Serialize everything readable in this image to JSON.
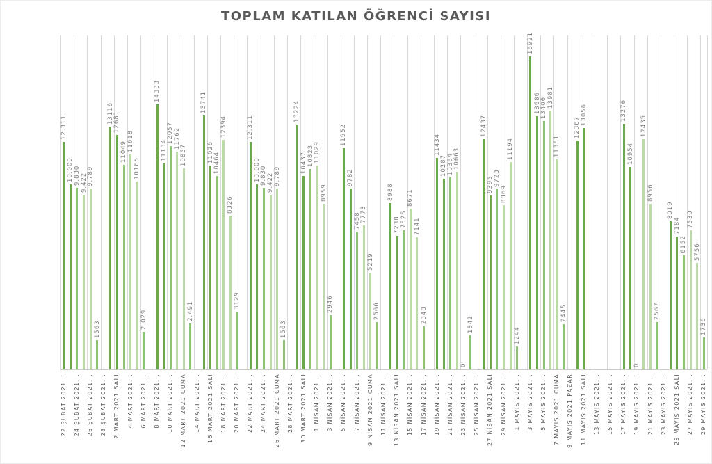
{
  "title": "TOPLAM KATILAN ÖĞRENCİ SAYISI",
  "colors": {
    "bar_dark": "#6aaa4d",
    "bar_medium": "#8cc473",
    "bar_light": "#bcdaa6",
    "gridline": "#d9d9d9",
    "axis_line": "#c9c9c9",
    "value_label": "#7f7f7f",
    "axis_label": "#595959",
    "title": "#595959"
  },
  "chart_data": {
    "type": "bar",
    "title": "TOPLAM KATILAN ÖĞRENCİ SAYISI",
    "xlabel": "",
    "ylabel": "",
    "ylim": [
      0,
      17000
    ],
    "grid": "vertical-only",
    "legend": false,
    "x_axis": {
      "num_categories": 97,
      "first_category": "22 ŞUBAT 2021",
      "last_category": "29 MAYIS 2021",
      "label_every": 2,
      "tick_labels": [
        "22 ŞUBAT 2021...",
        "24 ŞUBAT 2021...",
        "26 ŞUBAT 2021...",
        "28 ŞUBAT 2021...",
        "2 MART 2021 SALI",
        "4 MART 2021...",
        "6 MART 2021...",
        "8 MART 2021...",
        "10 MART 2021...",
        "12 MART 2021 CUMA",
        "14 MART 2021...",
        "16 MART 2021 SALI",
        "18 MART 2021...",
        "20 MART 2021...",
        "22 MART 2021...",
        "24 MART 2021...",
        "26 MART 2021 CUMA",
        "28 MART 2021...",
        "30 MART 2021 SALI",
        "1 NİSAN 2021...",
        "3 NİSAN 2021...",
        "5 NİSAN 2021...",
        "7 NİSAN 2021...",
        "9 NİSAN 2021 CUMA",
        "11 NİSAN 2021...",
        "13 NİSAN 2021 SALI",
        "15 NİSAN 2021...",
        "17 NİSAN 2021...",
        "19 NİSAN 2021...",
        "21 NİSAN 2021...",
        "23 NİSAN 2021...",
        "25 NİSAN 2021...",
        "27 NİSAN 2021 SALI",
        "29 NİSAN 2021...",
        "1 MAYIS 2021...",
        "3 MAYIS 2021...",
        "5 MAYIS 2021...",
        "7 MAYIS 2021 CUMA",
        "9 MAYIS 2021 PAZAR",
        "11 MAYIS 2021 SALI",
        "13 MAYIS 2021...",
        "15 MAYIS 2021...",
        "17 MAYIS 2021...",
        "19 MAYIS 2021...",
        "21 MAYIS 2021...",
        "23 MAYIS 2021...",
        "25 MAYIS 2021 SALI",
        "27 MAYIS 2021...",
        "29 MAYIS 2021..."
      ]
    },
    "bars": [
      {
        "day": 0,
        "label": "12.311",
        "value": 12311
      },
      {
        "day": 1,
        "label": "10.000",
        "value": 10000
      },
      {
        "day": 2,
        "label": "9.830",
        "value": 9830
      },
      {
        "day": 3,
        "label": "9.422",
        "value": 9422
      },
      {
        "day": 4,
        "label": "9.789",
        "value": 9789
      },
      {
        "day": 5,
        "label": "1563",
        "value": 1563
      },
      {
        "day": 7,
        "label": "13116",
        "value": 13116
      },
      {
        "day": 8,
        "label": "12681",
        "value": 12681
      },
      {
        "day": 9,
        "label": "11049",
        "value": 11049
      },
      {
        "day": 10,
        "label": "11618",
        "value": 11618
      },
      {
        "day": 11,
        "label": "10165",
        "value": 10165
      },
      {
        "day": 12,
        "label": "2.029",
        "value": 2029
      },
      {
        "day": 14,
        "label": "14333",
        "value": 14333
      },
      {
        "day": 15,
        "label": "11134",
        "value": 11134
      },
      {
        "day": 16,
        "label": "12057",
        "value": 12057
      },
      {
        "day": 17,
        "label": "11762",
        "value": 11762
      },
      {
        "day": 18,
        "label": "10857",
        "value": 10857
      },
      {
        "day": 19,
        "label": "2.491",
        "value": 2491
      },
      {
        "day": 21,
        "label": "13741",
        "value": 13741
      },
      {
        "day": 22,
        "label": "11026",
        "value": 11026
      },
      {
        "day": 23,
        "label": "10464",
        "value": 10464
      },
      {
        "day": 24,
        "label": "12394",
        "value": 12394
      },
      {
        "day": 25,
        "label": "8326",
        "value": 8326
      },
      {
        "day": 26,
        "label": "3129",
        "value": 3129
      },
      {
        "day": 28,
        "label": "12.311",
        "value": 12311
      },
      {
        "day": 29,
        "label": "10.000",
        "value": 10000
      },
      {
        "day": 30,
        "label": "9.830",
        "value": 9830
      },
      {
        "day": 31,
        "label": "9.422",
        "value": 9422
      },
      {
        "day": 32,
        "label": "9.789",
        "value": 9789
      },
      {
        "day": 33,
        "label": "1563",
        "value": 1563
      },
      {
        "day": 35,
        "label": "13224",
        "value": 13224
      },
      {
        "day": 36,
        "label": "10437",
        "value": 10437
      },
      {
        "day": 37,
        "label": "10823",
        "value": 10823
      },
      {
        "day": 38,
        "label": "11029",
        "value": 11029
      },
      {
        "day": 39,
        "label": "8959",
        "value": 8959
      },
      {
        "day": 40,
        "label": "2946",
        "value": 2946
      },
      {
        "day": 42,
        "label": "11952",
        "value": 11952
      },
      {
        "day": 43,
        "label": "9782",
        "value": 9782
      },
      {
        "day": 44,
        "label": "7458",
        "value": 7458
      },
      {
        "day": 45,
        "label": "7773",
        "value": 7773
      },
      {
        "day": 46,
        "label": "5219",
        "value": 5219
      },
      {
        "day": 47,
        "label": "2566",
        "value": 2566
      },
      {
        "day": 49,
        "label": "8988",
        "value": 8988
      },
      {
        "day": 50,
        "label": "7238",
        "value": 7238
      },
      {
        "day": 51,
        "label": "7525",
        "value": 7525
      },
      {
        "day": 52,
        "label": "8671",
        "value": 8671
      },
      {
        "day": 53,
        "label": "7141",
        "value": 7141
      },
      {
        "day": 54,
        "label": "2348",
        "value": 2348
      },
      {
        "day": 56,
        "label": "11434",
        "value": 11434
      },
      {
        "day": 57,
        "label": "10287",
        "value": 10287
      },
      {
        "day": 58,
        "label": "10364",
        "value": 10364
      },
      {
        "day": 59,
        "label": "10663",
        "value": 10663
      },
      {
        "day": 60,
        "label": "0",
        "value": 0
      },
      {
        "day": 61,
        "label": "1842",
        "value": 1842
      },
      {
        "day": 63,
        "label": "12437",
        "value": 12437
      },
      {
        "day": 64,
        "label": "9395",
        "value": 9395
      },
      {
        "day": 65,
        "label": "9723",
        "value": 9723
      },
      {
        "day": 66,
        "label": "8869",
        "value": 8869
      },
      {
        "day": 67,
        "label": "11194",
        "value": 11194
      },
      {
        "day": 68,
        "label": "1244",
        "value": 1244
      },
      {
        "day": 70,
        "label": "16921",
        "value": 16921
      },
      {
        "day": 71,
        "label": "13686",
        "value": 13686
      },
      {
        "day": 72,
        "label": "13406",
        "value": 13406
      },
      {
        "day": 73,
        "label": "13981",
        "value": 13981
      },
      {
        "day": 74,
        "label": "11361",
        "value": 11361
      },
      {
        "day": 75,
        "label": "2445",
        "value": 2445
      },
      {
        "day": 77,
        "label": "12367",
        "value": 12367
      },
      {
        "day": 78,
        "label": "13056",
        "value": 13056
      },
      {
        "day": 84,
        "label": "13276",
        "value": 13276
      },
      {
        "day": 85,
        "label": "10954",
        "value": 10954
      },
      {
        "day": 86,
        "label": "0",
        "value": 0
      },
      {
        "day": 87,
        "label": "12435",
        "value": 12435
      },
      {
        "day": 88,
        "label": "8956",
        "value": 8956
      },
      {
        "day": 89,
        "label": "2567",
        "value": 2567
      },
      {
        "day": 91,
        "label": "8019",
        "value": 8019
      },
      {
        "day": 92,
        "label": "7184",
        "value": 7184
      },
      {
        "day": 93,
        "label": "6152",
        "value": 6152
      },
      {
        "day": 94,
        "label": "7530",
        "value": 7530
      },
      {
        "day": 95,
        "label": "5756",
        "value": 5756
      },
      {
        "day": 96,
        "label": "1736",
        "value": 1736
      }
    ]
  }
}
